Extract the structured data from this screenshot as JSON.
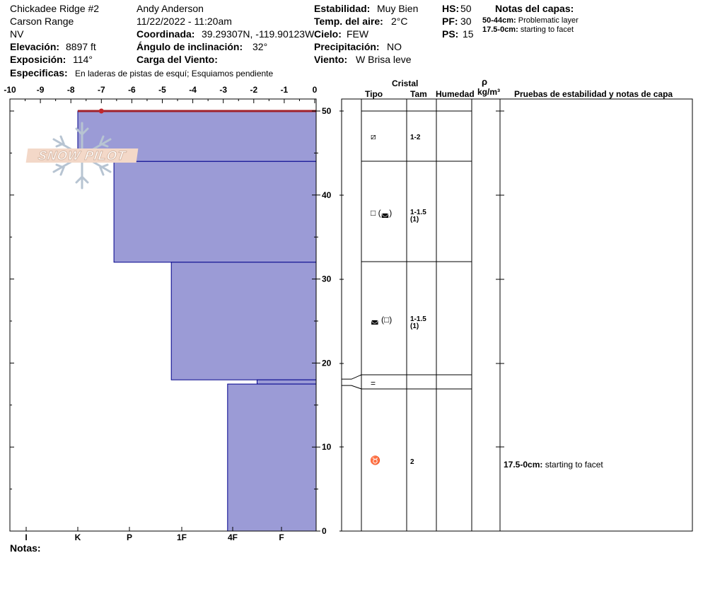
{
  "header": {
    "site": "Chickadee Ridge #2",
    "range": "Carson Range",
    "state": "NV",
    "elevation_label": "Elevación:",
    "elevation_value": "8897 ft",
    "aspect_label": "Exposición:",
    "aspect_value": "114°",
    "specifics_label": "Especificas:",
    "specifics_value": "En laderas de pistas de esquí; Esquiamos pendiente",
    "observer": "Andy Anderson",
    "datetime": "11/22/2022 - 11:20am",
    "coord_label": "Coordinada:",
    "coord_value": "39.29307N, -119.90123W",
    "slope_label": "Ángulo de inclinación:",
    "slope_value": "32°",
    "wind_load_label": "Carga del Viento:",
    "stability_label": "Estabilidad:",
    "stability_value": "Muy Bien",
    "air_temp_label": "Temp. del aire:",
    "air_temp_value": "2°C",
    "sky_label": "Cielo:",
    "sky_value": "FEW",
    "precip_label": "Precipitación:",
    "precip_value": "NO",
    "wind_label": "Viento:",
    "wind_value": "W Brisa leve",
    "hs_label": "HS:",
    "hs_value": "50",
    "pf_label": "PF:",
    "pf_value": "30",
    "ps_label": "PS:",
    "ps_value": "15",
    "layer_notes_title": "Notas del capas:",
    "layer_notes": [
      {
        "range": "50-44cm:",
        "text": "Problematic layer"
      },
      {
        "range": "17.5-0cm:",
        "text": "starting to facet"
      }
    ]
  },
  "logo_text": "SNOW PILOT",
  "colors": {
    "layer_fill": "#9b9bd6",
    "layer_stroke": "#00008b",
    "surface_line": "#a0202a",
    "temp_point": "#c0262c"
  },
  "chart_data": {
    "type": "snow_profile",
    "temp_axis": {
      "ticks": [
        "-10",
        "-9",
        "-8",
        "-7",
        "-6",
        "-5",
        "-4",
        "-3",
        "-2",
        "-1",
        "0"
      ],
      "min": -10,
      "max": 0
    },
    "height_axis": {
      "ticks": [
        "50",
        "40",
        "30",
        "20",
        "10",
        "0"
      ],
      "min": 0,
      "max": 50
    },
    "hardness_axis": {
      "ticks": [
        "I",
        "K",
        "P",
        "1F",
        "4F",
        "F"
      ]
    },
    "temperature_points": [
      {
        "temp": -7,
        "height": 50
      }
    ],
    "layers": [
      {
        "top": 50,
        "bottom": 44,
        "hardness_tick_pos": 1.0
      },
      {
        "top": 44,
        "bottom": 32,
        "hardness_tick_pos": 1.7
      },
      {
        "top": 32,
        "bottom": 18,
        "hardness_tick_pos": 2.8
      },
      {
        "top": 18,
        "bottom": 17.5,
        "hardness_tick_pos": 4.5
      },
      {
        "top": 17.5,
        "bottom": 0,
        "hardness_tick_pos": 3.9
      }
    ]
  },
  "table": {
    "crystal_label": "Cristal",
    "density_symbol": "ρ",
    "col_type": "Tipo",
    "col_size": "Tam",
    "col_moisture": "Humedad",
    "col_density": "kg/m³",
    "col_tests": "Pruebas de estabilidad y notas de capa",
    "rows": [
      {
        "type": "⧄",
        "size": "1-2",
        "size2": ""
      },
      {
        "type": "□ (◛)",
        "size": "1-1.5",
        "size2": "(1)"
      },
      {
        "type": "◛ (□)",
        "size": "1-1.5",
        "size2": "(1)"
      },
      {
        "type": "=",
        "size": "",
        "size2": ""
      },
      {
        "type": "♉",
        "size": "2",
        "size2": ""
      }
    ],
    "note_range": "17.5-0cm:",
    "note_text": "starting to facet"
  },
  "notes_label": "Notas:"
}
